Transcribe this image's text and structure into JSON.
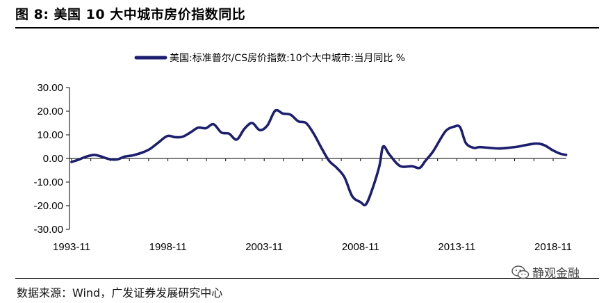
{
  "figure": {
    "title": "图 8:  美国 10 大中城市房价指数同比",
    "source": "数据来源：Wind，广发证券发展研究中心",
    "watermark": "静观金融",
    "watermark_icon": "wechat-icon"
  },
  "colors": {
    "series": "#1c1f6e",
    "axis": "#000000"
  },
  "chart_data": {
    "type": "line",
    "title": "",
    "xlabel": "",
    "ylabel": "",
    "ylim": [
      -30,
      30
    ],
    "yticks": [
      "30.00",
      "20.00",
      "10.00",
      "0.00",
      "-10.00",
      "-20.00",
      "-30.00"
    ],
    "ytick_values": [
      30,
      20,
      10,
      0,
      -10,
      -20,
      -30
    ],
    "xticks": [
      "1993-11",
      "1998-11",
      "2003-11",
      "2008-11",
      "2013-11",
      "2018-11"
    ],
    "xtick_values": [
      1993.83,
      1998.83,
      2003.83,
      2008.83,
      2013.83,
      2018.83
    ],
    "xlim": [
      1993.83,
      2019.5
    ],
    "grid": false,
    "legend_position": "top-center",
    "series": [
      {
        "name": "美国:标准普尔/CS房价指数:10个大中城市:当月同比 %",
        "x": [
          1993.83,
          1994.2,
          1994.6,
          1995.0,
          1995.3,
          1995.8,
          1996.2,
          1996.6,
          1997.0,
          1997.5,
          1997.9,
          1998.3,
          1998.8,
          1999.2,
          1999.6,
          2000.0,
          2000.4,
          2000.8,
          2001.2,
          2001.6,
          2002.0,
          2002.4,
          2002.8,
          2003.2,
          2003.6,
          2004.0,
          2004.4,
          2004.8,
          2005.2,
          2005.6,
          2006.0,
          2006.4,
          2006.8,
          2007.2,
          2007.6,
          2008.0,
          2008.4,
          2008.83,
          2009.1,
          2009.4,
          2009.8,
          2010.0,
          2010.3,
          2010.7,
          2011.0,
          2011.5,
          2011.9,
          2012.2,
          2012.6,
          2013.0,
          2013.3,
          2013.7,
          2014.0,
          2014.3,
          2014.7,
          2015.0,
          2015.5,
          2016.0,
          2016.5,
          2017.0,
          2017.5,
          2018.0,
          2018.4,
          2018.8,
          2019.2,
          2019.5
        ],
        "y": [
          -1.5,
          -0.5,
          0.8,
          1.5,
          1.0,
          -0.3,
          -0.4,
          0.8,
          1.3,
          2.5,
          4.0,
          6.5,
          9.5,
          9.0,
          9.2,
          11.0,
          13.0,
          12.8,
          14.5,
          11.0,
          10.5,
          8.0,
          12.5,
          15.0,
          12.0,
          14.0,
          20.2,
          19.0,
          18.5,
          15.7,
          15.0,
          10.5,
          4.5,
          -1.0,
          -4.0,
          -8.0,
          -16.0,
          -18.5,
          -19.5,
          -14.0,
          -3.5,
          5.0,
          2.0,
          -2.0,
          -3.5,
          -3.3,
          -4.0,
          -1.0,
          3.0,
          8.5,
          12.0,
          13.5,
          13.2,
          6.5,
          4.5,
          4.8,
          4.5,
          4.2,
          4.5,
          5.0,
          5.8,
          6.3,
          5.5,
          3.5,
          2.0,
          1.5
        ]
      }
    ]
  }
}
